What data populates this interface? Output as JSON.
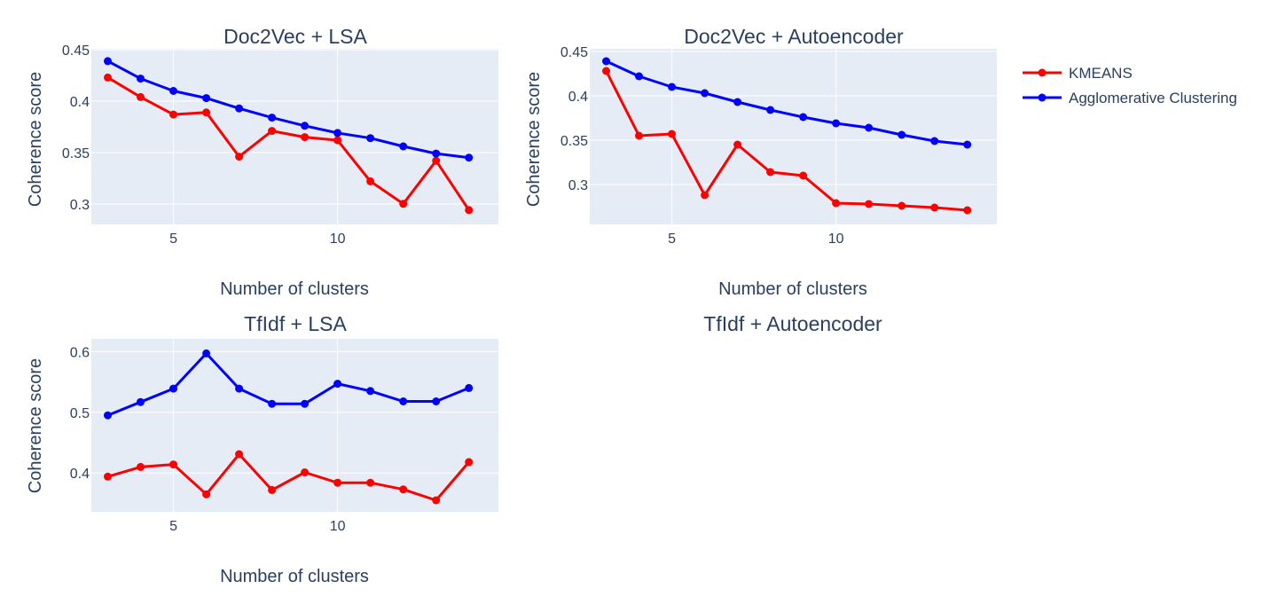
{
  "chart_data": {
    "type": "line",
    "legend": {
      "placement": "top-right",
      "grid": true
    },
    "series_styles": [
      {
        "name": "KMEANS",
        "color": "#ff0000"
      },
      {
        "name": "Agglomerative Clustering",
        "color": "#0000ff"
      }
    ],
    "subplots": [
      {
        "title": "Doc2Vec + LSA",
        "xlabel": "Number of clusters",
        "ylabel": "Coherence score",
        "xlim": [
          2.5,
          14.9
        ],
        "ylim": [
          0.28,
          0.451
        ],
        "x_ticks": [
          5,
          10
        ],
        "y_ticks": [
          0.3,
          0.35,
          0.4,
          0.45
        ],
        "y_tick_labels": [
          "0.3",
          "0.35",
          "0.4",
          "0.45"
        ],
        "x": [
          3,
          4,
          5,
          6,
          7,
          8,
          9,
          10,
          11,
          12,
          13,
          14
        ],
        "series": [
          {
            "name": "KMEANS",
            "values": [
              0.423,
              0.404,
              0.387,
              0.389,
              0.346,
              0.371,
              0.365,
              0.362,
              0.322,
              0.3,
              0.342,
              0.294
            ]
          },
          {
            "name": "Agglomerative Clustering",
            "values": [
              0.439,
              0.422,
              0.41,
              0.403,
              0.393,
              0.384,
              0.376,
              0.369,
              0.364,
              0.356,
              0.349,
              0.345
            ]
          }
        ]
      },
      {
        "title": "Doc2Vec + Autoencoder",
        "xlabel": "Number of clusters",
        "ylabel": "Coherence score",
        "xlim": [
          2.5,
          14.9
        ],
        "ylim": [
          0.255,
          0.453
        ],
        "x_ticks": [
          5,
          10
        ],
        "y_ticks": [
          0.3,
          0.35,
          0.4,
          0.45
        ],
        "y_tick_labels": [
          "0.3",
          "0.35",
          "0.4",
          "0.45"
        ],
        "x": [
          3,
          4,
          5,
          6,
          7,
          8,
          9,
          10,
          11,
          12,
          13,
          14
        ],
        "series": [
          {
            "name": "KMEANS",
            "values": [
              0.428,
              0.355,
              0.357,
              0.288,
              0.345,
              0.314,
              0.31,
              0.279,
              0.278,
              0.276,
              0.274,
              0.271
            ]
          },
          {
            "name": "Agglomerative Clustering",
            "values": [
              0.439,
              0.422,
              0.41,
              0.403,
              0.393,
              0.384,
              0.376,
              0.369,
              0.364,
              0.356,
              0.349,
              0.345
            ]
          }
        ]
      },
      {
        "title": "TfIdf + LSA",
        "xlabel": "Number of clusters",
        "ylabel": "Coherence score",
        "xlim": [
          2.5,
          14.9
        ],
        "ylim": [
          0.336,
          0.621
        ],
        "x_ticks": [
          5,
          10
        ],
        "y_ticks": [
          0.4,
          0.5,
          0.6
        ],
        "y_tick_labels": [
          "0.4",
          "0.5",
          "0.6"
        ],
        "x": [
          3,
          4,
          5,
          6,
          7,
          8,
          9,
          10,
          11,
          12,
          13,
          14
        ],
        "series": [
          {
            "name": "KMEANS",
            "values": [
              0.394,
              0.41,
              0.414,
              0.365,
              0.431,
              0.372,
              0.401,
              0.384,
              0.384,
              0.373,
              0.355,
              0.418
            ]
          },
          {
            "name": "Agglomerative Clustering",
            "values": [
              0.495,
              0.517,
              0.539,
              0.597,
              0.539,
              0.514,
              0.514,
              0.547,
              0.535,
              0.518,
              0.518,
              0.54
            ]
          }
        ]
      },
      {
        "title": "TfIdf + Autoencoder",
        "empty": true
      }
    ]
  }
}
